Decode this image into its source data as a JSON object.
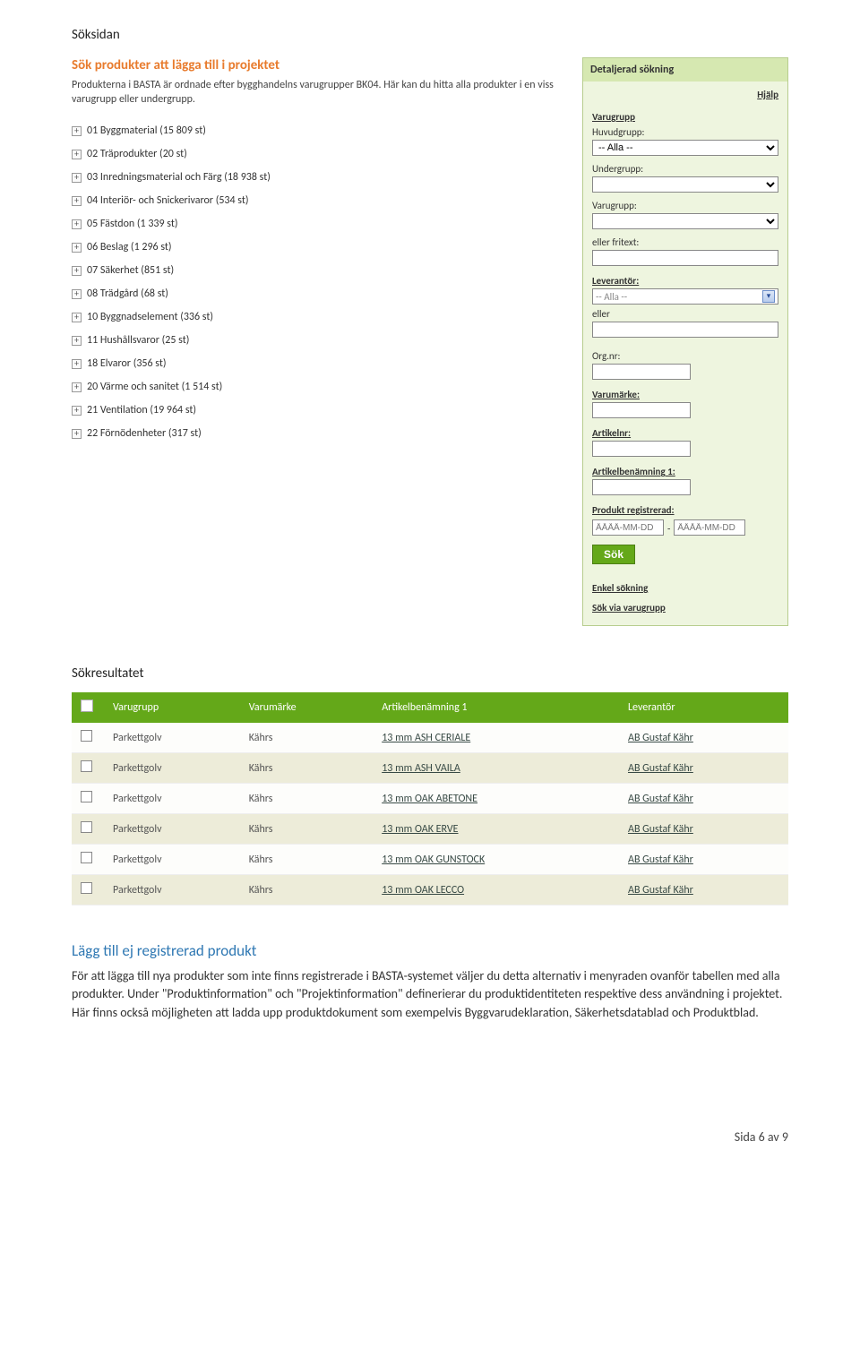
{
  "sections": {
    "soksidan": "Söksidan",
    "sokresultatet": "Sökresultatet"
  },
  "search": {
    "heading": "Sök produkter att lägga till i projektet",
    "intro": "Produkterna i BASTA är ordnade efter bygghandelns varugrupper BK04. Här kan du hitta alla produkter i en viss varugrupp eller undergrupp.",
    "tree": [
      "01 Byggmaterial (15 809 st)",
      "02 Träprodukter (20 st)",
      "03 Inredningsmaterial och Färg (18 938 st)",
      "04 Interiör- och Snickerivaror (534 st)",
      "05 Fästdon (1 339 st)",
      "06 Beslag (1 296 st)",
      "07 Säkerhet (851 st)",
      "08 Trädgård (68 st)",
      "10 Byggnadselement (336 st)",
      "11 Hushållsvaror (25 st)",
      "18 Elvaror (356 st)",
      "20 Värme och sanitet (1 514 st)",
      "21 Ventilation (19 964 st)",
      "22 Förnödenheter (317 st)"
    ]
  },
  "sidebar": {
    "title": "Detaljerad sökning",
    "help": "Hjälp",
    "varugrupp": "Varugrupp",
    "huvudgrupp": "Huvudgrupp:",
    "alla": "-- Alla --",
    "undergrupp": "Undergrupp:",
    "varugrupp2": "Varugrupp:",
    "fritext": "eller fritext:",
    "leverantor": "Leverantör:",
    "eller": "eller",
    "orgnr": "Org.nr:",
    "varumarke": "Varumärke:",
    "artikelnr": "Artikelnr:",
    "artikelbenamning": "Artikelbenämning 1:",
    "registrerad": "Produkt registrerad:",
    "date_placeholder": "ÅÅÅÅ-MM-DD",
    "sok": "Sök",
    "enkel": "Enkel sökning",
    "via": "Sök via varugrupp"
  },
  "results": {
    "headers": {
      "varugrupp": "Varugrupp",
      "varumarke": "Varumärke",
      "artikel": "Artikelbenämning 1",
      "leverantor": "Leverantör"
    },
    "rows": [
      {
        "varugrupp": "Parkettgolv",
        "varumarke": "Kährs",
        "artikel": "13 mm ASH CERIALE",
        "leverantor": "AB Gustaf Kähr"
      },
      {
        "varugrupp": "Parkettgolv",
        "varumarke": "Kährs",
        "artikel": "13 mm ASH VAILA",
        "leverantor": "AB Gustaf Kähr"
      },
      {
        "varugrupp": "Parkettgolv",
        "varumarke": "Kährs",
        "artikel": "13 mm OAK ABETONE",
        "leverantor": "AB Gustaf Kähr"
      },
      {
        "varugrupp": "Parkettgolv",
        "varumarke": "Kährs",
        "artikel": "13 mm OAK ERVE",
        "leverantor": "AB Gustaf Kähr"
      },
      {
        "varugrupp": "Parkettgolv",
        "varumarke": "Kährs",
        "artikel": "13 mm OAK GUNSTOCK",
        "leverantor": "AB Gustaf Kähr"
      },
      {
        "varugrupp": "Parkettgolv",
        "varumarke": "Kährs",
        "artikel": "13 mm OAK LECCO",
        "leverantor": "AB Gustaf Kähr"
      }
    ]
  },
  "article": {
    "heading": "Lägg till ej registrerad produkt",
    "body": "För att lägga till nya produkter som inte finns registrerade i BASTA-systemet väljer du detta alternativ i menyraden ovanför tabellen med alla produkter. Under \"Produktinformation\" och \"Projektinformation\" definerierar du produktidentiteten respektive dess användning i projektet. Här finns också möjligheten att ladda upp produktdokument som exempelvis Byggvarudeklaration, Säkerhetsdatablad och Produktblad."
  },
  "footer": {
    "text": "Sida 6 av 9"
  }
}
